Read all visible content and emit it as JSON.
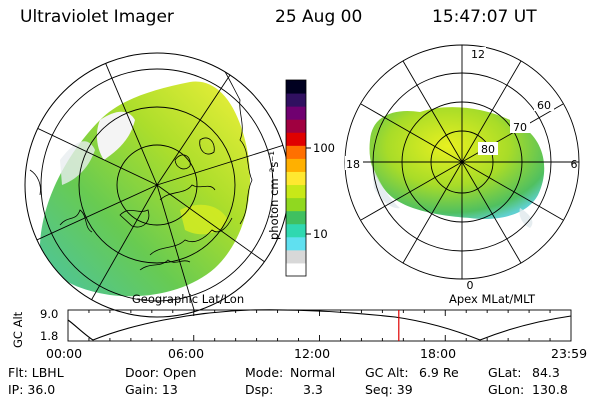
{
  "header": {
    "instrument": "Ultraviolet Imager",
    "date": "25 Aug 00",
    "time": "15:47:07 UT"
  },
  "left_map": {
    "label": "Geographic Lat/Lon"
  },
  "right_map": {
    "label": "Apex MLat/MLT",
    "mlt_labels": [
      "12",
      "18",
      "6",
      "0"
    ],
    "lat_labels": [
      "60",
      "70",
      "80"
    ]
  },
  "colorbar": {
    "unit_label": "photon cm⁻²s⁻¹",
    "scale": "log",
    "ticks": [
      "100",
      "10"
    ],
    "colors": [
      "#ffffff",
      "#d8d8d8",
      "#60e0f0",
      "#30d8b0",
      "#40c060",
      "#90d820",
      "#c8e818",
      "#ffe830",
      "#ffb000",
      "#ff7000",
      "#e00000",
      "#a00040",
      "#700070",
      "#301060",
      "#000020"
    ]
  },
  "altitude_plot": {
    "ylabel": "GC Alt",
    "yticks": [
      "9.0",
      "1.8"
    ],
    "xticks": [
      "00:00",
      "06:00",
      "12:00",
      "18:00",
      "23:59"
    ],
    "marker_time": "15:47",
    "marker_color": "#e00000"
  },
  "info": {
    "flt": "Flt: LBHL",
    "ip": "IP: 36.0",
    "door": "Door: Open",
    "gain": "Gain: 13",
    "mode_label": "Mode:",
    "mode_value": "Normal",
    "dsp_label": "Dsp:",
    "dsp_value": "3.3",
    "gcalt_label": "GC Alt:",
    "gcalt_value": "6.9 Re",
    "seq": "Seq: 39",
    "glat_label": "GLat:",
    "glat_value": "84.3",
    "glon_label": "GLon:",
    "glon_value": "130.8"
  }
}
